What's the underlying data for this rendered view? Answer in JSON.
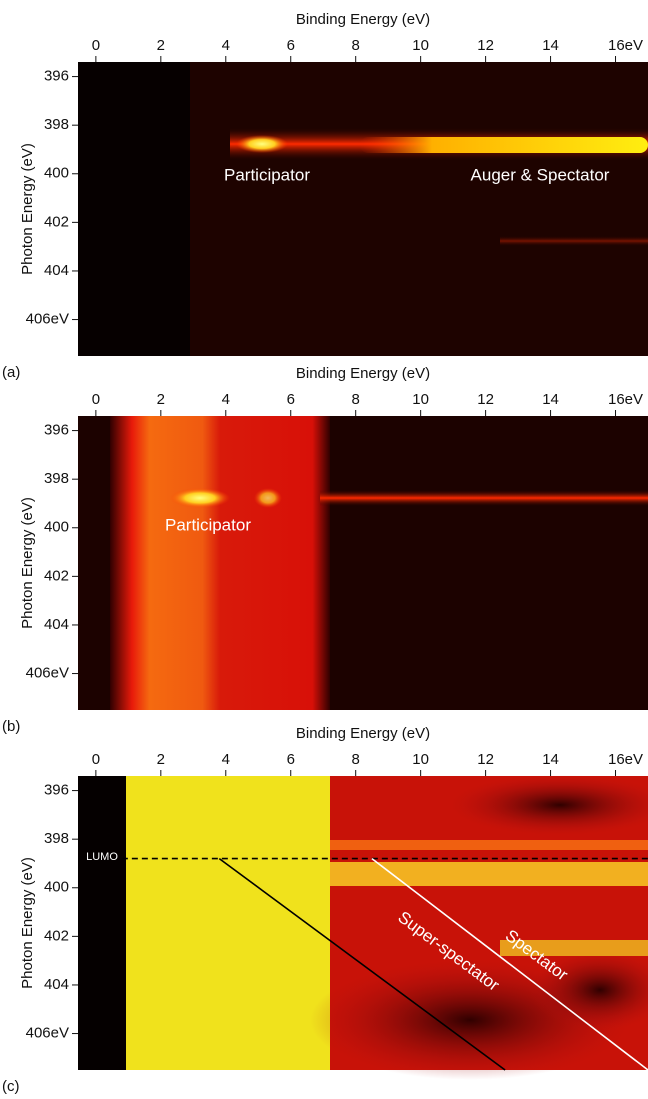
{
  "chart_data": [
    {
      "type": "heatmap",
      "panel_label": "(a)",
      "xlabel": "Binding Energy (eV)",
      "ylabel": "Photon Energy (eV)",
      "xlim": [
        -0.55,
        17
      ],
      "ylim": [
        395.4,
        407.5
      ],
      "xticks": [
        0,
        2,
        4,
        6,
        8,
        10,
        12,
        14,
        {
          "value": 16,
          "label": "16eV"
        }
      ],
      "yticks": [
        396,
        398,
        400,
        402,
        404,
        {
          "value": 406,
          "label": "406eV"
        }
      ],
      "annotations": [
        "Participator",
        "Auger & Spectator"
      ]
    },
    {
      "type": "heatmap",
      "panel_label": "(b)",
      "xlabel": "Binding Energy (eV)",
      "ylabel": "Photon Energy (eV)",
      "xlim": [
        -0.55,
        17
      ],
      "ylim": [
        395.4,
        407.5
      ],
      "xticks": [
        0,
        2,
        4,
        6,
        8,
        10,
        12,
        14,
        {
          "value": 16,
          "label": "16eV"
        }
      ],
      "yticks": [
        396,
        398,
        400,
        402,
        404,
        {
          "value": 406,
          "label": "406eV"
        }
      ],
      "annotations": [
        "Participator"
      ]
    },
    {
      "type": "heatmap",
      "panel_label": "(c)",
      "xlabel": "Binding Energy (eV)",
      "ylabel": "Photon Energy (eV)",
      "xlim": [
        -0.55,
        17
      ],
      "ylim": [
        395.4,
        407.5
      ],
      "xticks": [
        0,
        2,
        4,
        6,
        8,
        10,
        12,
        14,
        {
          "value": 16,
          "label": "16eV"
        }
      ],
      "yticks": [
        396,
        398,
        400,
        402,
        404,
        {
          "value": 406,
          "label": "406eV"
        }
      ],
      "annotations": [
        "LUMO",
        "Super-spectator",
        "Spectator"
      ],
      "lines": [
        {
          "x": [
            0.8,
            17
          ],
          "y": [
            398.8,
            398.8
          ],
          "color": "#000000",
          "dash": true
        },
        {
          "x": [
            3.8,
            12.6
          ],
          "y": [
            398.8,
            407.5
          ],
          "color": "#000000",
          "dash": false
        },
        {
          "x": [
            8.5,
            17
          ],
          "y": [
            398.8,
            407.5
          ],
          "color": "#ffffff",
          "dash": false
        }
      ]
    }
  ]
}
